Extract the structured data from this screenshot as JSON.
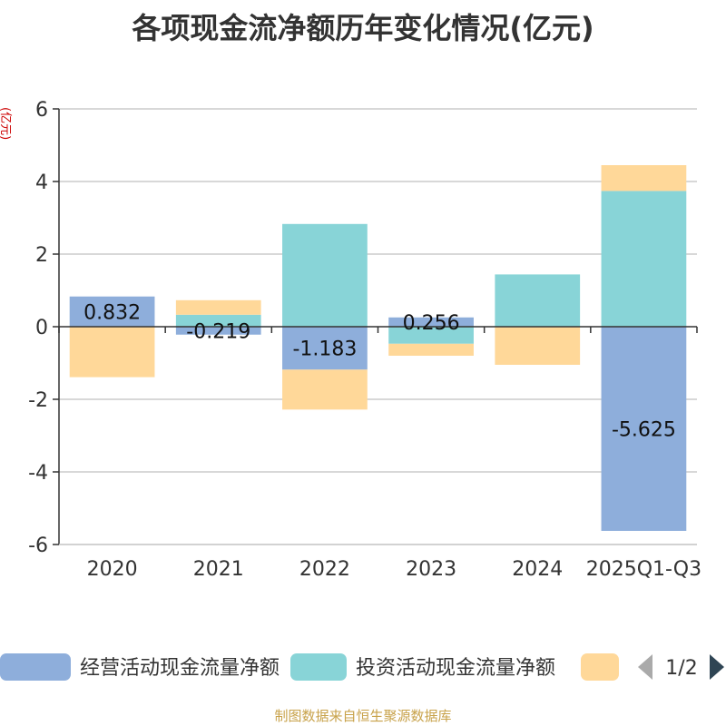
{
  "chart_data": {
    "type": "bar",
    "stacked": true,
    "title": "各项现金流净额历年变化情况(亿元)",
    "ylabel": "(亿元)",
    "xlabel": "",
    "ylim": [
      -6,
      6
    ],
    "yticks": [
      -6,
      -4,
      -2,
      0,
      2,
      4,
      6
    ],
    "grid": true,
    "legend_position": "bottom",
    "categories": [
      "2020",
      "2021",
      "2022",
      "2023",
      "2024",
      "2025Q1-Q3"
    ],
    "series": [
      {
        "name": "经营活动现金流量净额",
        "color": "#8eaedb",
        "values": [
          0.832,
          -0.219,
          -1.183,
          0.256,
          0.0,
          -5.625
        ]
      },
      {
        "name": "投资活动现金流量净额",
        "color": "#88d4d7",
        "values": [
          0.0,
          0.33,
          2.83,
          -0.47,
          1.44,
          3.74
        ]
      },
      {
        "name": "",
        "color": "#ffd899",
        "values": [
          -1.39,
          0.4,
          -1.1,
          -0.33,
          -1.05,
          0.71
        ]
      }
    ],
    "data_labels": [
      "0.832",
      "-0.219",
      "-1.183",
      "0.256",
      "",
      "-5.625"
    ]
  },
  "legend": {
    "pager": "1/2"
  },
  "source_note": "制图数据来自恒生聚源数据库"
}
